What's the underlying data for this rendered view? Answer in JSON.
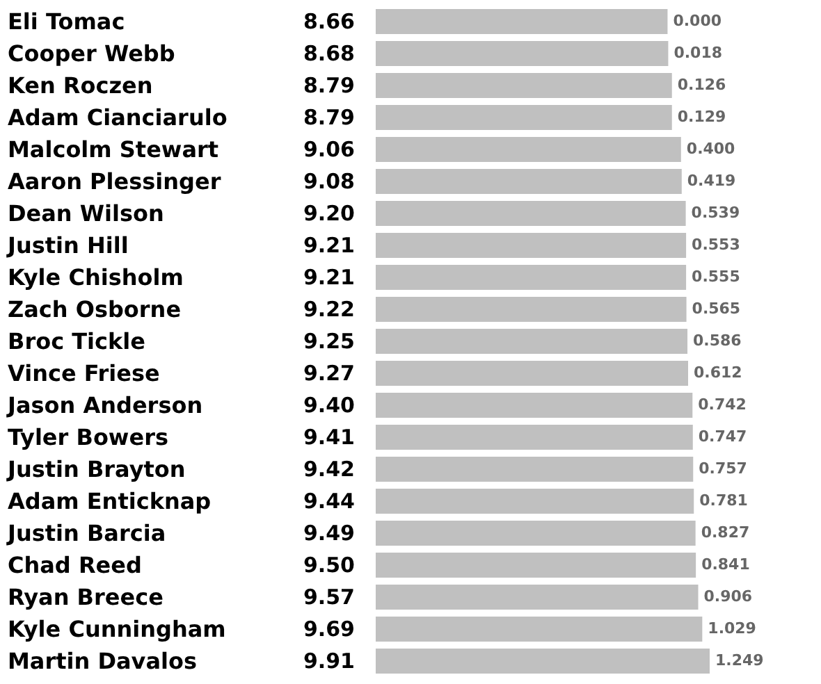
{
  "chart_data": {
    "type": "bar",
    "orientation": "horizontal",
    "color": "#c0c0c0",
    "categories": [
      "Eli Tomac",
      "Cooper Webb",
      "Ken Roczen",
      "Adam Cianciarulo",
      "Malcolm Stewart",
      "Aaron Plessinger",
      "Dean Wilson",
      "Justin Hill",
      "Kyle Chisholm",
      "Zach Osborne",
      "Broc Tickle",
      "Vince Friese",
      "Jason Anderson",
      "Tyler Bowers",
      "Justin Brayton",
      "Adam Enticknap",
      "Justin Barcia",
      "Chad Reed",
      "Ryan Breece",
      "Kyle Cunningham",
      "Martin Davalos"
    ],
    "values": [
      8.66,
      8.68,
      8.79,
      8.79,
      9.06,
      9.08,
      9.2,
      9.21,
      9.21,
      9.22,
      9.25,
      9.27,
      9.4,
      9.41,
      9.42,
      9.44,
      9.49,
      9.5,
      9.57,
      9.69,
      9.91
    ],
    "value_labels": [
      "8.66",
      "8.68",
      "8.79",
      "8.79",
      "9.06",
      "9.08",
      "9.20",
      "9.21",
      "9.21",
      "9.22",
      "9.25",
      "9.27",
      "9.40",
      "9.41",
      "9.42",
      "9.44",
      "9.49",
      "9.50",
      "9.57",
      "9.69",
      "9.91"
    ],
    "annotations": [
      {
        "text": "0.000",
        "x": 8.66,
        "y": "Eli Tomac"
      },
      {
        "text": "0.018",
        "x": 8.68,
        "y": "Cooper Webb"
      },
      {
        "text": "0.126",
        "x": 8.79,
        "y": "Ken Roczen"
      },
      {
        "text": "0.129",
        "x": 8.79,
        "y": "Adam Cianciarulo"
      },
      {
        "text": "0.400",
        "x": 9.06,
        "y": "Malcolm Stewart"
      },
      {
        "text": "0.419",
        "x": 9.08,
        "y": "Aaron Plessinger"
      },
      {
        "text": "0.539",
        "x": 9.2,
        "y": "Dean Wilson"
      },
      {
        "text": "0.553",
        "x": 9.21,
        "y": "Justin Hill"
      },
      {
        "text": "0.555",
        "x": 9.21,
        "y": "Kyle Chisholm"
      },
      {
        "text": "0.565",
        "x": 9.22,
        "y": "Zach Osborne"
      },
      {
        "text": "0.586",
        "x": 9.25,
        "y": "Broc Tickle"
      },
      {
        "text": "0.612",
        "x": 9.27,
        "y": "Vince Friese"
      },
      {
        "text": "0.742",
        "x": 9.4,
        "y": "Jason Anderson"
      },
      {
        "text": "0.747",
        "x": 9.41,
        "y": "Tyler Bowers"
      },
      {
        "text": "0.757",
        "x": 9.42,
        "y": "Justin Brayton"
      },
      {
        "text": "0.781",
        "x": 9.44,
        "y": "Adam Enticknap"
      },
      {
        "text": "0.827",
        "x": 9.49,
        "y": "Justin Barcia"
      },
      {
        "text": "0.841",
        "x": 9.5,
        "y": "Chad Reed"
      },
      {
        "text": "0.906",
        "x": 9.57,
        "y": "Ryan Breece"
      },
      {
        "text": "1.029",
        "x": 9.69,
        "y": "Kyle Cunningham"
      },
      {
        "text": "1.249",
        "x": 9.91,
        "y": "Martin Davalos"
      }
    ]
  }
}
